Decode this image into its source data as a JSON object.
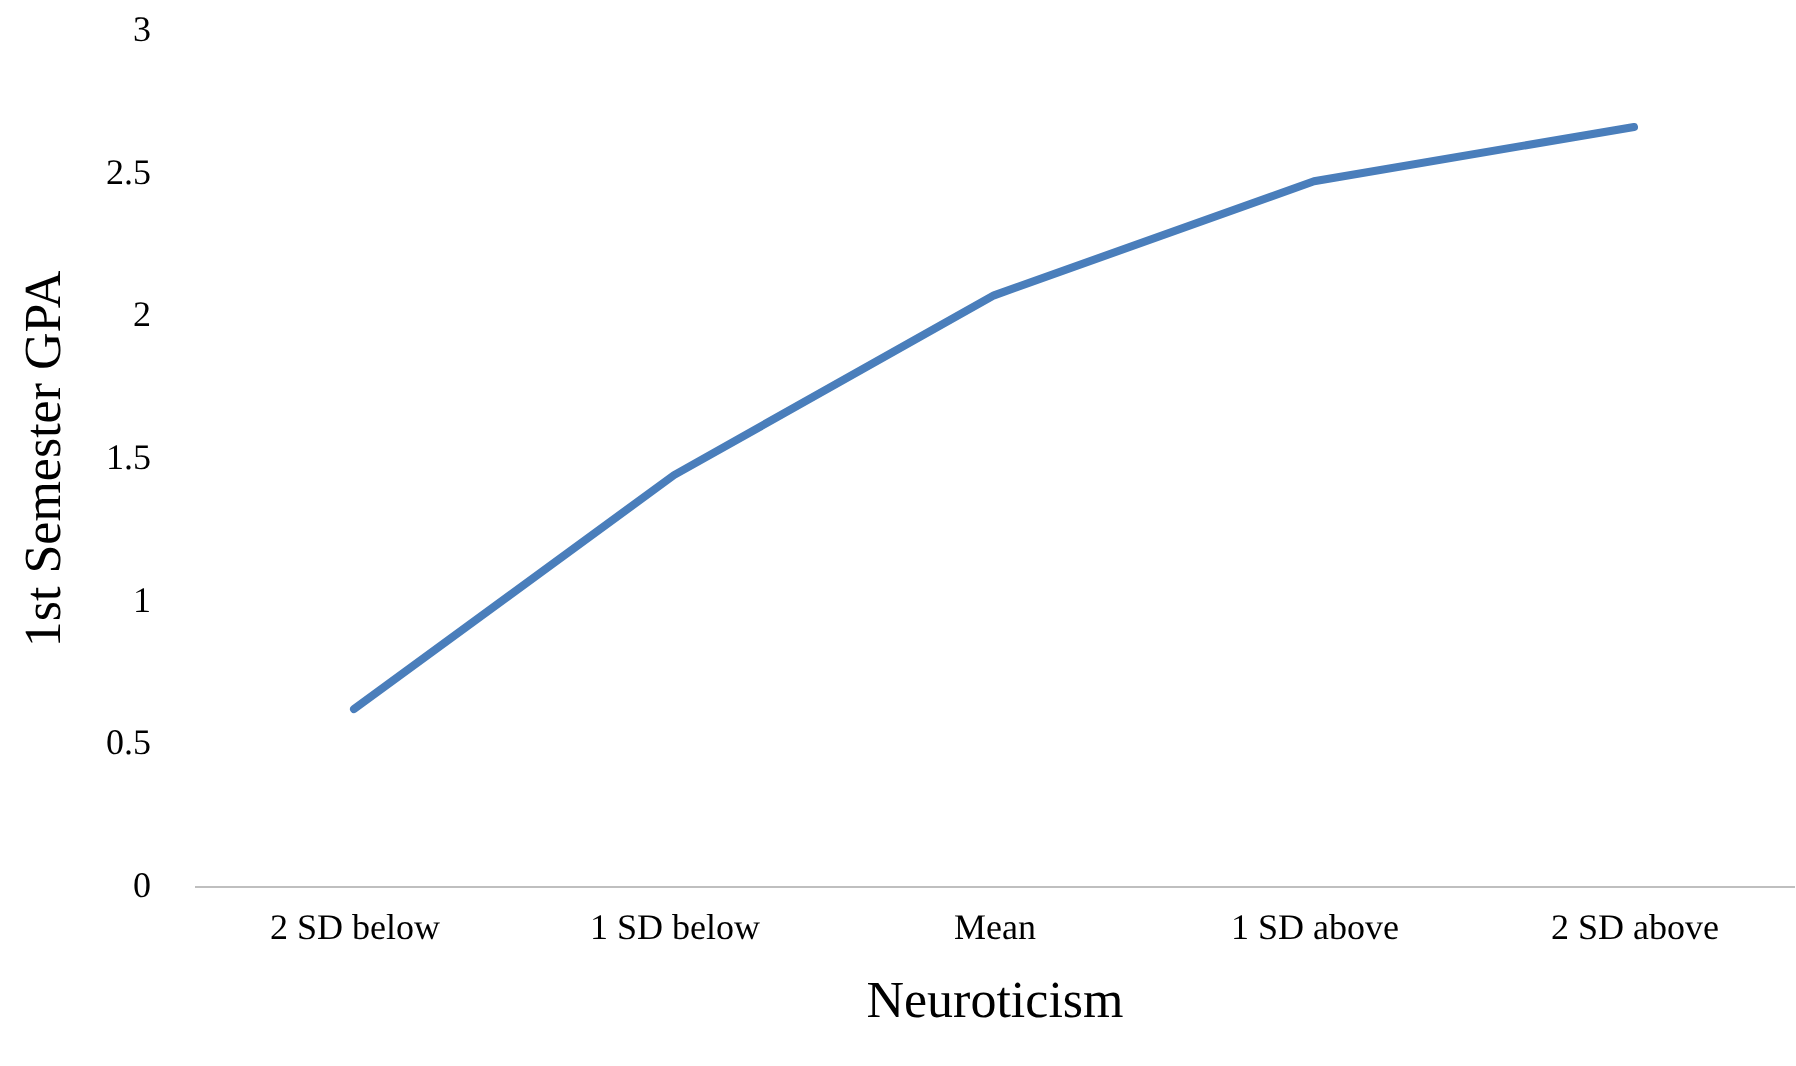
{
  "chart_data": {
    "type": "line",
    "xlabel": "Neuroticism",
    "ylabel": "1st Semester GPA",
    "categories": [
      "2 SD below",
      "1 SD below",
      "Mean",
      "1 SD above",
      "2 SD above"
    ],
    "series": [
      {
        "color": "#4a7ebb",
        "values": [
          0.62,
          1.44,
          2.07,
          2.47,
          2.66
        ]
      }
    ],
    "ylim": [
      0,
      3
    ],
    "yticks": [
      0,
      0.5,
      1,
      1.5,
      2,
      2.5,
      3
    ],
    "grid": false,
    "marker": "none",
    "line_style": "solid"
  }
}
